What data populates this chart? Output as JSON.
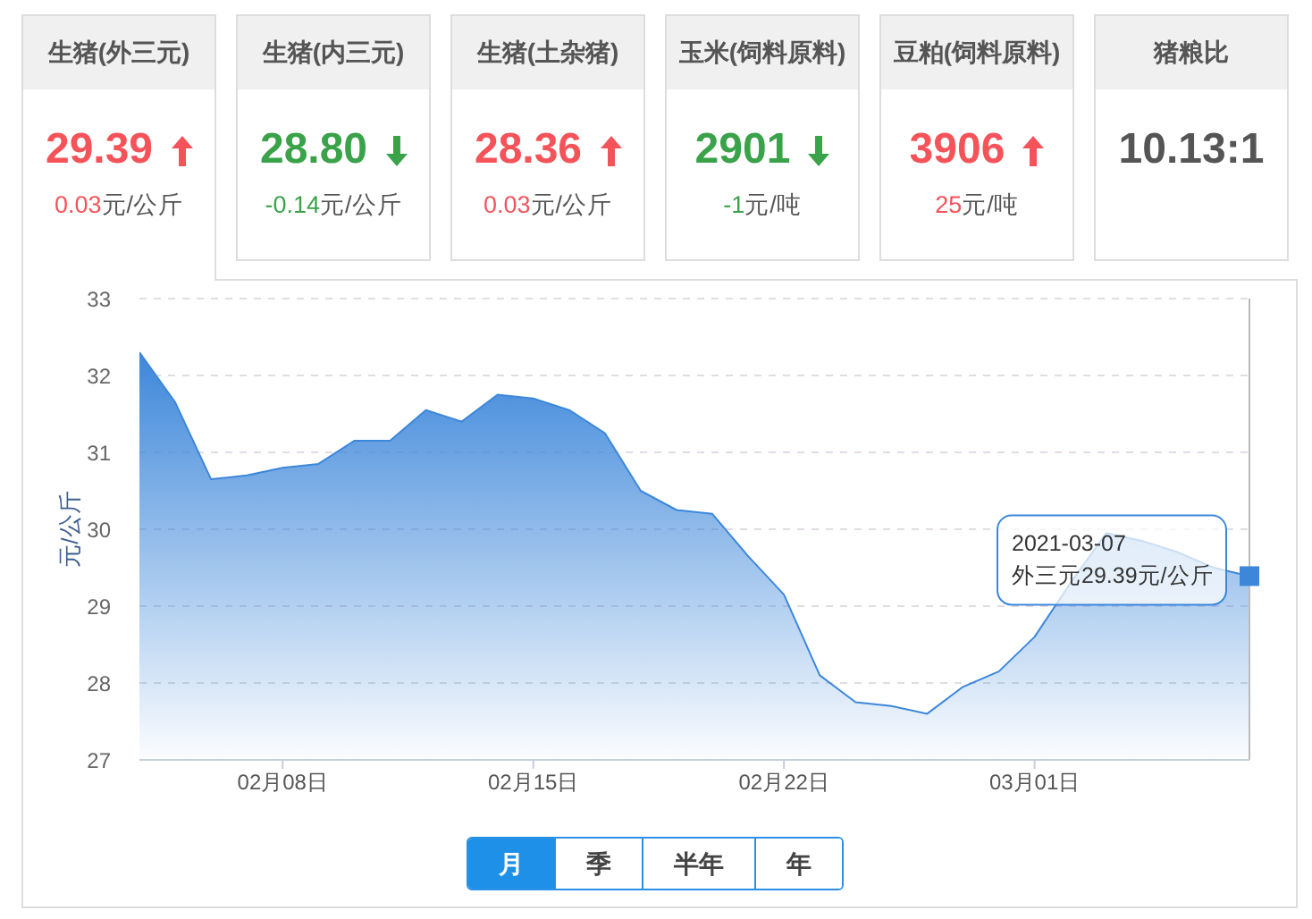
{
  "chart_data": [
    {
      "type": "other",
      "categories": [
        "生猪(外三元)",
        "生猪(内三元)",
        "生猪(土杂猪)",
        "玉米(饲料原料)",
        "豆粕(饲料原料)",
        "猪粮比"
      ],
      "annotations": [
        "29.39",
        "28.80",
        "28.36",
        "2901",
        "3906",
        "10.13:1"
      ],
      "values": [
        0.03,
        -0.14,
        0.03,
        -1,
        25,
        null
      ],
      "value_labels": [
        "0.03元/公斤",
        "-0.14元/公斤",
        "0.03元/公斤",
        "-1元/吨",
        "25元/吨",
        null
      ]
    },
    {
      "type": "area",
      "color": "#3d87da",
      "ylabel": "元/公斤",
      "x": [
        "2021-02-04",
        "2021-02-05",
        "2021-02-06",
        "2021-02-07",
        "2021-02-08",
        "2021-02-09",
        "2021-02-10",
        "2021-02-11",
        "2021-02-12",
        "2021-02-13",
        "2021-02-14",
        "2021-02-15",
        "2021-02-16",
        "2021-02-17",
        "2021-02-18",
        "2021-02-19",
        "2021-02-20",
        "2021-02-21",
        "2021-02-22",
        "2021-02-23",
        "2021-02-24",
        "2021-02-25",
        "2021-02-26",
        "2021-02-27",
        "2021-02-28",
        "2021-03-01",
        "2021-03-02",
        "2021-03-03",
        "2021-03-04",
        "2021-03-05",
        "2021-03-06",
        "2021-03-07"
      ],
      "values": [
        32.3,
        31.65,
        30.65,
        30.7,
        30.8,
        30.85,
        31.15,
        31.15,
        31.55,
        31.4,
        31.75,
        31.7,
        31.55,
        31.25,
        30.5,
        30.25,
        30.2,
        29.65,
        29.15,
        28.1,
        27.75,
        27.7,
        27.6,
        27.95,
        28.15,
        28.6,
        29.3,
        29.95,
        29.85,
        29.7,
        29.5,
        29.39
      ],
      "xlim": [
        "2021-02-04",
        "2021-03-07"
      ],
      "xticks": [
        {
          "value": "2021-02-08",
          "label": "02月08日"
        },
        {
          "value": "2021-02-15",
          "label": "02月15日"
        },
        {
          "value": "2021-02-22",
          "label": "02月22日"
        },
        {
          "value": "2021-03-01",
          "label": "03月01日"
        }
      ],
      "ylim": [
        27,
        33
      ],
      "yticks": [
        27,
        28,
        29,
        30,
        31,
        32,
        33
      ],
      "grid": "y",
      "annotations": [
        {
          "text": "2021-03-07\n外三元29.39元/公斤",
          "x": "2021-03-07",
          "y": 29.39
        },
        "月",
        "季",
        "半年",
        "年"
      ]
    }
  ]
}
